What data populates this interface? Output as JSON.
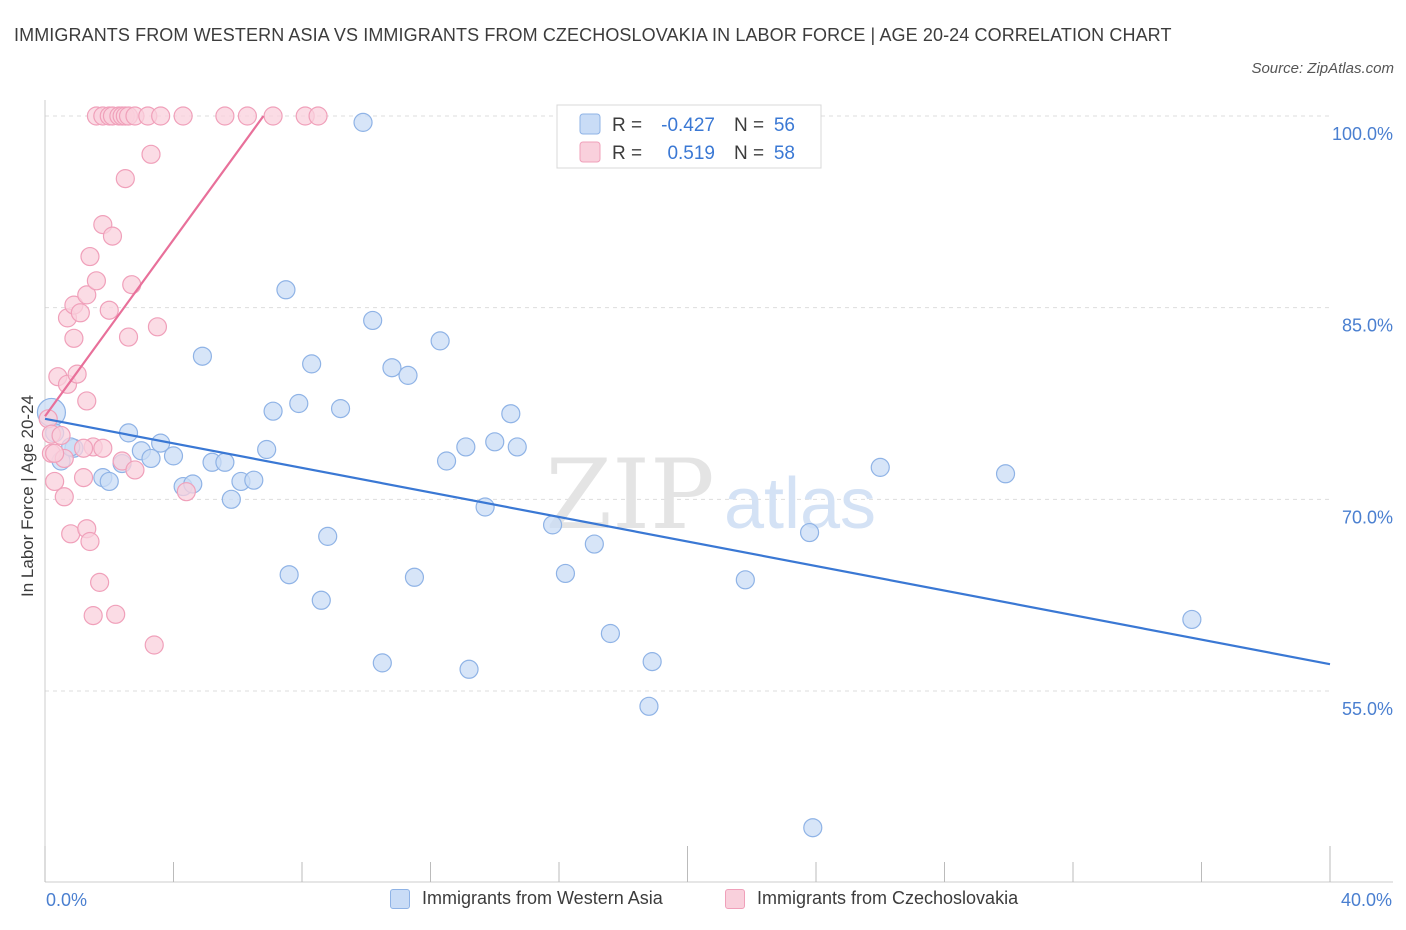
{
  "title": "IMMIGRANTS FROM WESTERN ASIA VS IMMIGRANTS FROM CZECHOSLOVAKIA IN LABOR FORCE | AGE 20-24 CORRELATION CHART",
  "source": "Source: ZipAtlas.com",
  "watermark": {
    "zip": "ZIP",
    "atlas": "atlas"
  },
  "colors": {
    "blue_fill": "#c9dcf6",
    "blue_stroke": "#8fb3e6",
    "blue_line": "#3a78d4",
    "pink_fill": "#f9d0dc",
    "pink_stroke": "#f0a0ba",
    "pink_line": "#e8709a",
    "axis_text": "#4a7fd0",
    "grid": "#dddddd"
  },
  "legend": {
    "rows": [
      {
        "r_label": "R =",
        "r_value": "-0.427",
        "n_label": "N =",
        "n_value": "56"
      },
      {
        "r_label": "R =",
        "r_value": "0.519",
        "n_label": "N =",
        "n_value": "58"
      }
    ]
  },
  "bottom_legend": {
    "series1": "Immigrants from Western Asia",
    "series2": "Immigrants from Czechoslovakia"
  },
  "x_axis": {
    "min_label": "0.0%",
    "max_label": "40.0%"
  },
  "chart_data": {
    "type": "scatter",
    "title": "IMMIGRANTS FROM WESTERN ASIA VS IMMIGRANTS FROM CZECHOSLOVAKIA IN LABOR FORCE | AGE 20-24 CORRELATION CHART",
    "xlabel": "",
    "ylabel": "In Labor Force | Age 20-24",
    "xlim": [
      0,
      40
    ],
    "ylim": [
      40,
      101
    ],
    "y_ticks": [
      {
        "value": 100,
        "label": "100.0%"
      },
      {
        "value": 85,
        "label": "85.0%"
      },
      {
        "value": 70,
        "label": "70.0%"
      },
      {
        "value": 55,
        "label": "55.0%"
      }
    ],
    "series": [
      {
        "name": "Immigrants from Western Asia",
        "color": "#c9dcf6",
        "points": [
          [
            0.2,
            76.8
          ],
          [
            0.3,
            75.2
          ],
          [
            0.5,
            73.0
          ],
          [
            0.9,
            74.0
          ],
          [
            1.8,
            71.7
          ],
          [
            2.0,
            71.4
          ],
          [
            2.4,
            72.8
          ],
          [
            2.6,
            75.2
          ],
          [
            3.0,
            73.8
          ],
          [
            3.3,
            73.2
          ],
          [
            3.6,
            74.4
          ],
          [
            4.0,
            73.4
          ],
          [
            4.3,
            71.0
          ],
          [
            4.6,
            71.2
          ],
          [
            4.9,
            81.2
          ],
          [
            5.2,
            72.9
          ],
          [
            5.6,
            72.9
          ],
          [
            5.8,
            70.0
          ],
          [
            6.1,
            71.4
          ],
          [
            6.5,
            71.5
          ],
          [
            6.9,
            73.9
          ],
          [
            7.1,
            76.9
          ],
          [
            7.5,
            86.4
          ],
          [
            7.6,
            64.1
          ],
          [
            7.9,
            77.5
          ],
          [
            8.3,
            80.6
          ],
          [
            8.6,
            62.1
          ],
          [
            8.8,
            67.1
          ],
          [
            9.2,
            77.1
          ],
          [
            9.9,
            99.5
          ],
          [
            10.2,
            84.0
          ],
          [
            10.5,
            57.2
          ],
          [
            10.8,
            80.3
          ],
          [
            11.3,
            79.7
          ],
          [
            11.5,
            63.9
          ],
          [
            12.3,
            82.4
          ],
          [
            12.5,
            73.0
          ],
          [
            13.1,
            74.1
          ],
          [
            13.2,
            56.7
          ],
          [
            13.7,
            69.4
          ],
          [
            14.0,
            74.5
          ],
          [
            14.5,
            76.7
          ],
          [
            14.7,
            74.1
          ],
          [
            15.8,
            68.0
          ],
          [
            16.2,
            64.2
          ],
          [
            17.1,
            66.5
          ],
          [
            17.6,
            59.5
          ],
          [
            18.9,
            57.3
          ],
          [
            18.8,
            53.8
          ],
          [
            21.8,
            63.7
          ],
          [
            23.8,
            67.4
          ],
          [
            23.9,
            44.3
          ],
          [
            26.0,
            72.5
          ],
          [
            29.9,
            72.0
          ],
          [
            35.7,
            60.6
          ],
          [
            0.8,
            74.1
          ]
        ],
        "trend": {
          "x0": 0,
          "y0": 76.3,
          "x1": 40,
          "y1": 57.1
        }
      },
      {
        "name": "Immigrants from Czechoslovakia",
        "color": "#f9d0dc",
        "points": [
          [
            0.1,
            76.3
          ],
          [
            0.2,
            75.1
          ],
          [
            0.2,
            73.6
          ],
          [
            0.3,
            71.4
          ],
          [
            0.4,
            79.6
          ],
          [
            0.5,
            75.0
          ],
          [
            0.6,
            73.2
          ],
          [
            0.6,
            70.2
          ],
          [
            0.7,
            79.0
          ],
          [
            0.7,
            84.2
          ],
          [
            0.8,
            67.3
          ],
          [
            0.9,
            82.6
          ],
          [
            0.9,
            85.2
          ],
          [
            1.0,
            79.8
          ],
          [
            1.1,
            84.6
          ],
          [
            1.2,
            71.7
          ],
          [
            1.3,
            86.0
          ],
          [
            1.3,
            77.7
          ],
          [
            1.3,
            67.7
          ],
          [
            1.4,
            66.7
          ],
          [
            1.4,
            89.0
          ],
          [
            1.5,
            74.1
          ],
          [
            1.5,
            60.9
          ],
          [
            1.6,
            87.1
          ],
          [
            1.6,
            100.0
          ],
          [
            1.7,
            63.5
          ],
          [
            1.8,
            74.0
          ],
          [
            1.8,
            100.0
          ],
          [
            1.8,
            91.5
          ],
          [
            2.0,
            100.0
          ],
          [
            2.0,
            84.8
          ],
          [
            2.1,
            90.6
          ],
          [
            2.1,
            100.0
          ],
          [
            2.2,
            61.0
          ],
          [
            2.3,
            100.0
          ],
          [
            2.4,
            100.0
          ],
          [
            2.4,
            73.0
          ],
          [
            2.5,
            95.1
          ],
          [
            2.5,
            100.0
          ],
          [
            2.6,
            82.7
          ],
          [
            2.6,
            100.0
          ],
          [
            2.7,
            86.8
          ],
          [
            2.8,
            72.3
          ],
          [
            2.8,
            100.0
          ],
          [
            3.2,
            100.0
          ],
          [
            3.3,
            97.0
          ],
          [
            3.4,
            58.6
          ],
          [
            3.5,
            83.5
          ],
          [
            3.6,
            100.0
          ],
          [
            4.4,
            70.6
          ],
          [
            5.6,
            100.0
          ],
          [
            6.3,
            100.0
          ],
          [
            7.1,
            100.0
          ],
          [
            8.1,
            100.0
          ],
          [
            8.5,
            100.0
          ],
          [
            0.3,
            73.6
          ],
          [
            1.2,
            74.0
          ],
          [
            4.3,
            100.0
          ]
        ],
        "trend": {
          "x0": 0,
          "y0": 76.5,
          "x1": 6.8,
          "y1": 100.0
        }
      }
    ]
  }
}
